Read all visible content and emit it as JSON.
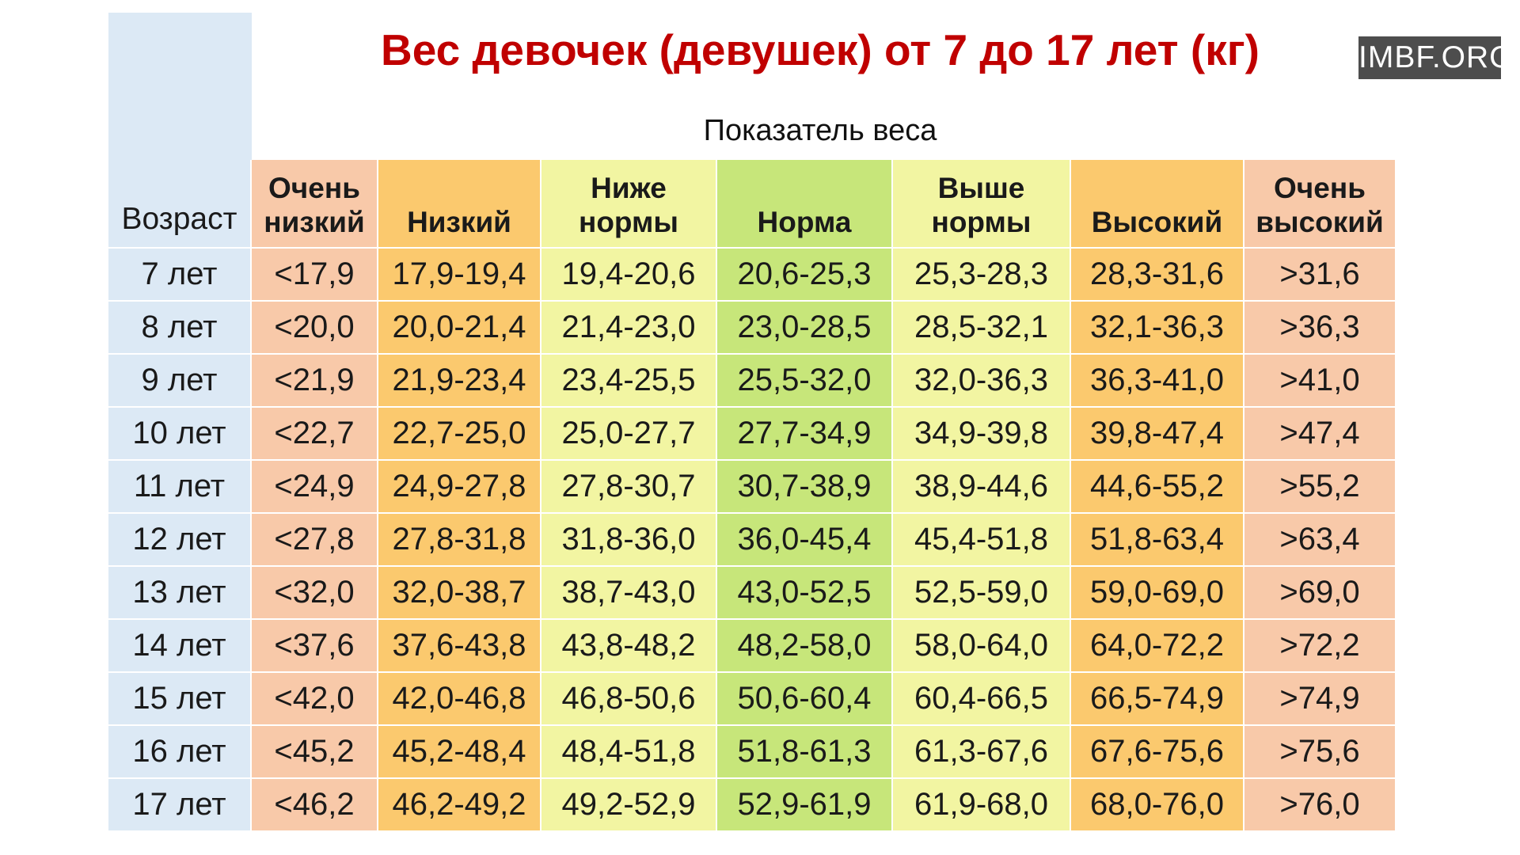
{
  "title": "Вес девочек (девушек) от 7 до 17 лет (кг)",
  "watermark": "IMBF.ORG",
  "colors": {
    "title": "#c00000",
    "age_column": "#dce9f5",
    "very_low": "#f8c9a9",
    "low": "#fbc96e",
    "below_norm": "#f2f5a2",
    "norm": "#c7e67a",
    "above_norm": "#f2f5a2",
    "high": "#fbc96e",
    "very_high": "#f8c9a9"
  },
  "chart_data": {
    "type": "table",
    "title": "Вес девочек (девушек) от 7 до 17 лет (кг)",
    "subtitle": "Показатель веса",
    "age_header": "Возраст",
    "columns": [
      {
        "key": "very_low",
        "label": "Очень\nнизкий",
        "color": "#f8c9a9"
      },
      {
        "key": "low",
        "label": "Низкий",
        "color": "#fbc96e"
      },
      {
        "key": "below_norm",
        "label": "Ниже\nнормы",
        "color": "#f2f5a2"
      },
      {
        "key": "norm",
        "label": "Норма",
        "color": "#c7e67a"
      },
      {
        "key": "above_norm",
        "label": "Выше\nнормы",
        "color": "#f2f5a2"
      },
      {
        "key": "high",
        "label": "Высокий",
        "color": "#fbc96e"
      },
      {
        "key": "very_high",
        "label": "Очень\nвысокий",
        "color": "#f8c9a9"
      }
    ],
    "rows": [
      {
        "age": "7 лет",
        "values": [
          "<17,9",
          "17,9-19,4",
          "19,4-20,6",
          "20,6-25,3",
          "25,3-28,3",
          "28,3-31,6",
          ">31,6"
        ]
      },
      {
        "age": "8 лет",
        "values": [
          "<20,0",
          "20,0-21,4",
          "21,4-23,0",
          "23,0-28,5",
          "28,5-32,1",
          "32,1-36,3",
          ">36,3"
        ]
      },
      {
        "age": "9 лет",
        "values": [
          "<21,9",
          "21,9-23,4",
          "23,4-25,5",
          "25,5-32,0",
          "32,0-36,3",
          "36,3-41,0",
          ">41,0"
        ]
      },
      {
        "age": "10 лет",
        "values": [
          "<22,7",
          "22,7-25,0",
          "25,0-27,7",
          "27,7-34,9",
          "34,9-39,8",
          "39,8-47,4",
          ">47,4"
        ]
      },
      {
        "age": "11 лет",
        "values": [
          "<24,9",
          "24,9-27,8",
          "27,8-30,7",
          "30,7-38,9",
          "38,9-44,6",
          "44,6-55,2",
          ">55,2"
        ]
      },
      {
        "age": "12 лет",
        "values": [
          "<27,8",
          "27,8-31,8",
          "31,8-36,0",
          "36,0-45,4",
          "45,4-51,8",
          "51,8-63,4",
          ">63,4"
        ]
      },
      {
        "age": "13 лет",
        "values": [
          "<32,0",
          "32,0-38,7",
          "38,7-43,0",
          "43,0-52,5",
          "52,5-59,0",
          "59,0-69,0",
          ">69,0"
        ]
      },
      {
        "age": "14 лет",
        "values": [
          "<37,6",
          "37,6-43,8",
          "43,8-48,2",
          "48,2-58,0",
          "58,0-64,0",
          "64,0-72,2",
          ">72,2"
        ]
      },
      {
        "age": "15 лет",
        "values": [
          "<42,0",
          "42,0-46,8",
          "46,8-50,6",
          "50,6-60,4",
          "60,4-66,5",
          "66,5-74,9",
          ">74,9"
        ]
      },
      {
        "age": "16 лет",
        "values": [
          "<45,2",
          "45,2-48,4",
          "48,4-51,8",
          "51,8-61,3",
          "61,3-67,6",
          "67,6-75,6",
          ">75,6"
        ]
      },
      {
        "age": "17 лет",
        "values": [
          "<46,2",
          "46,2-49,2",
          "49,2-52,9",
          "52,9-61,9",
          "61,9-68,0",
          "68,0-76,0",
          ">76,0"
        ]
      }
    ]
  }
}
